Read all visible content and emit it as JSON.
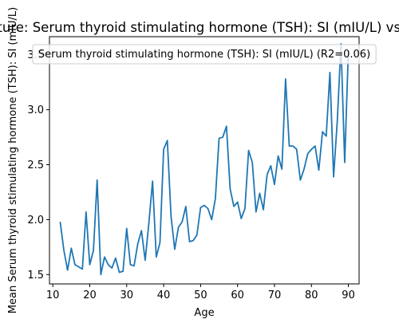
{
  "chart_data": {
    "type": "line",
    "title": "Feature: Serum thyroid stimulating hormone (TSH): SI (mIU/L) vs. Age",
    "xlabel": "Age",
    "ylabel": "Mean Serum thyroid stimulating hormone (TSH): SI (mIU/L)",
    "legend": "Serum thyroid stimulating hormone (TSH): SI (mIU/L) (R2=0.06)",
    "legend_position": "top-center",
    "grid": false,
    "xlim": [
      9.1,
      92.9
    ],
    "ylim": [
      1.415,
      3.665
    ],
    "xticks": [
      10,
      20,
      30,
      40,
      50,
      60,
      70,
      80,
      90
    ],
    "yticks": [
      1.5,
      2.0,
      2.5,
      3.0,
      3.5
    ],
    "ytick_labels": [
      "1.5",
      "2.0",
      "2.5",
      "3.0",
      "3.5"
    ],
    "line_color": "#1f77b4",
    "series": [
      {
        "name": "Serum thyroid stimulating hormone (TSH): SI (mIU/L) (R2=0.06)",
        "x": [
          12,
          13,
          14,
          15,
          16,
          17,
          18,
          19,
          20,
          21,
          22,
          23,
          24,
          25,
          26,
          27,
          28,
          29,
          30,
          31,
          32,
          33,
          34,
          35,
          36,
          37,
          38,
          39,
          40,
          41,
          42,
          43,
          44,
          45,
          46,
          47,
          48,
          49,
          50,
          51,
          52,
          53,
          54,
          55,
          56,
          57,
          58,
          59,
          60,
          61,
          62,
          63,
          64,
          65,
          66,
          67,
          68,
          69,
          70,
          71,
          72,
          73,
          74,
          75,
          76,
          77,
          78,
          79,
          80,
          81,
          82,
          83,
          84,
          85,
          86,
          87,
          88,
          89,
          90
        ],
        "y": [
          1.98,
          1.72,
          1.54,
          1.74,
          1.59,
          1.57,
          1.55,
          2.07,
          1.59,
          1.72,
          2.36,
          1.5,
          1.66,
          1.59,
          1.56,
          1.65,
          1.52,
          1.53,
          1.92,
          1.59,
          1.58,
          1.78,
          1.9,
          1.63,
          1.97,
          2.35,
          1.66,
          1.79,
          2.64,
          2.72,
          2.03,
          1.73,
          1.93,
          1.98,
          2.12,
          1.8,
          1.81,
          1.86,
          2.11,
          2.13,
          2.1,
          2.0,
          2.19,
          2.74,
          2.75,
          2.85,
          2.28,
          2.12,
          2.16,
          2.01,
          2.1,
          2.63,
          2.52,
          2.07,
          2.24,
          2.09,
          2.41,
          2.49,
          2.32,
          2.58,
          2.46,
          3.28,
          2.67,
          2.67,
          2.64,
          2.36,
          2.46,
          2.6,
          2.64,
          2.67,
          2.45,
          2.8,
          2.76,
          3.34,
          2.39,
          2.9,
          3.6,
          2.52,
          3.54
        ]
      }
    ]
  }
}
